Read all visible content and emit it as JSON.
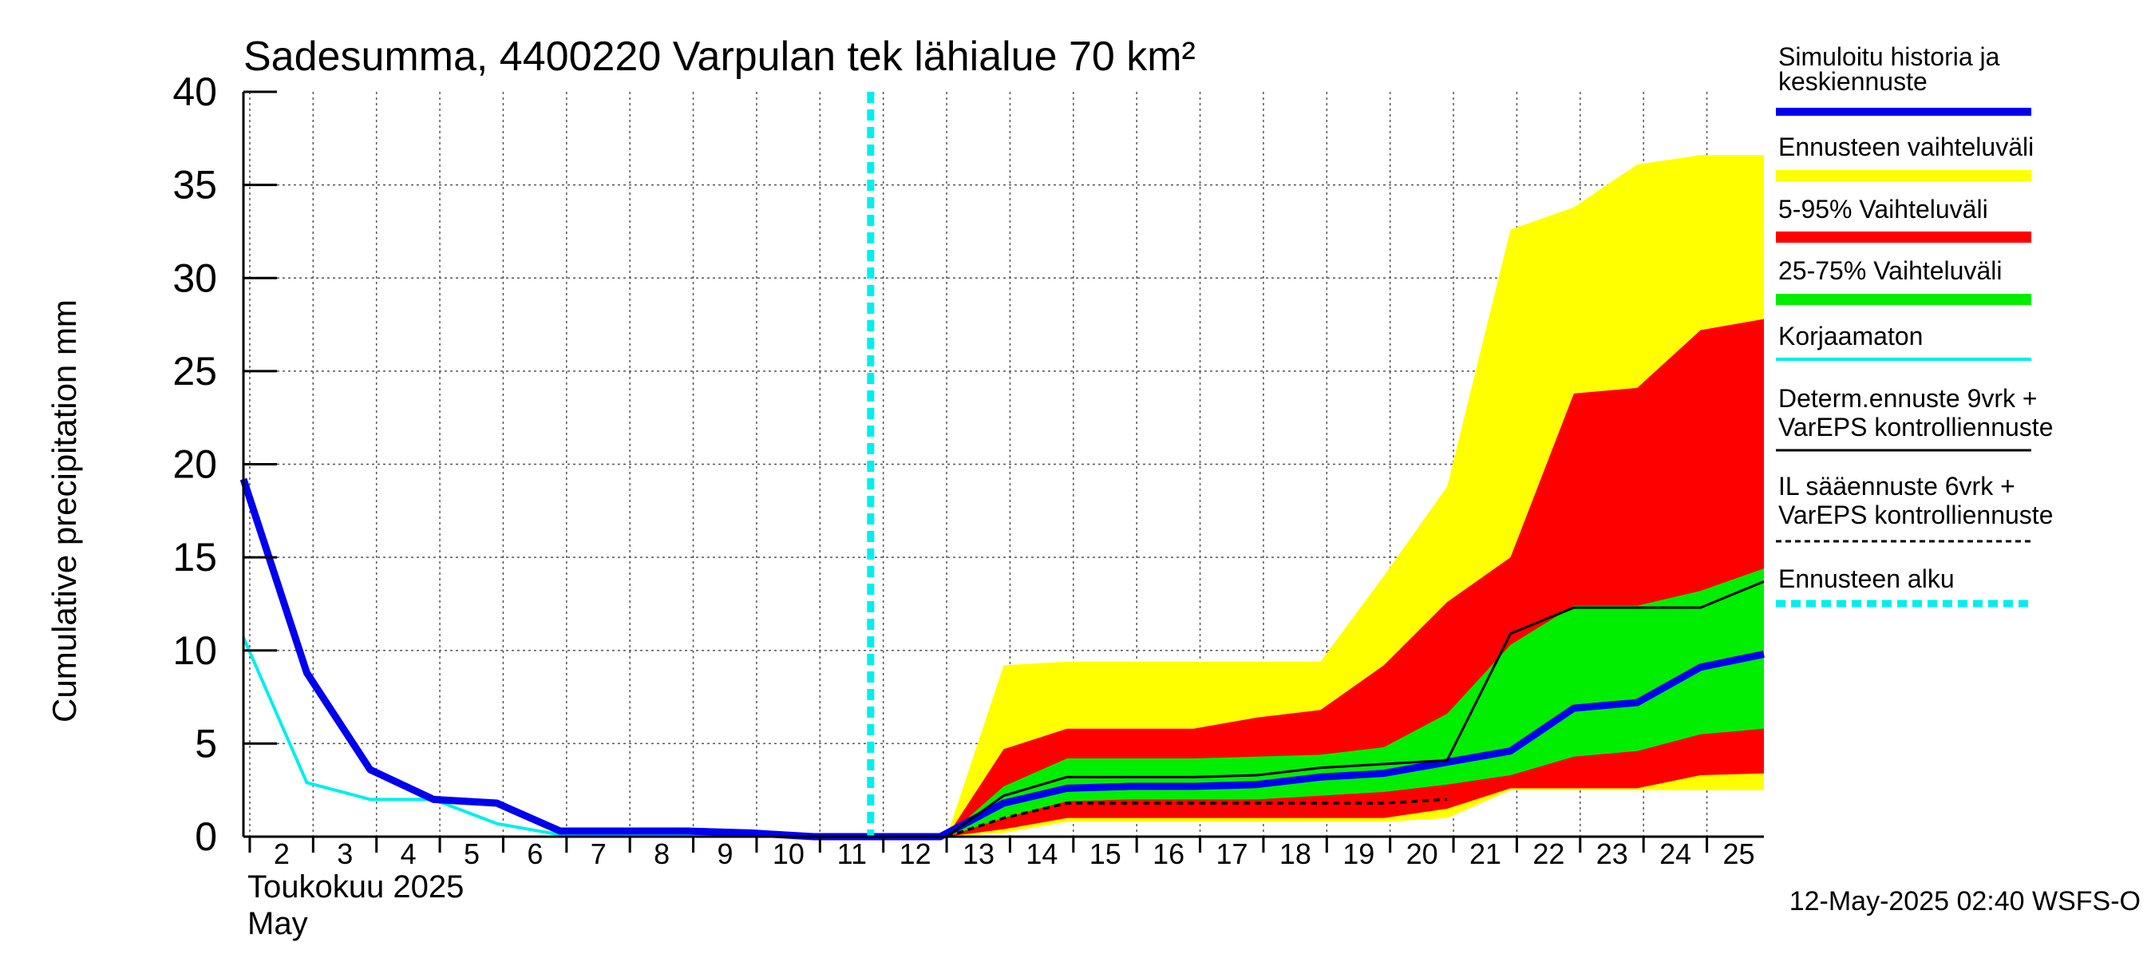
{
  "chart_data": {
    "type": "area",
    "title": "Sadesumma, 4400220 Varpulan tek lähialue 70 km²",
    "ylabel": "Cumulative precipitation   mm",
    "xlabel_month_fi": "Toukokuu  2025",
    "xlabel_month_en": "May",
    "footer": "12-May-2025 02:40 WSFS-O",
    "ylim": [
      0,
      40
    ],
    "y_ticks": [
      "0",
      "5",
      "10",
      "15",
      "20",
      "25",
      "30",
      "35",
      "40"
    ],
    "x_range": [
      1.9,
      25.9
    ],
    "x_ticks": [
      "2",
      "3",
      "4",
      "5",
      "6",
      "7",
      "8",
      "9",
      "10",
      "11",
      "12",
      "13",
      "14",
      "15",
      "16",
      "17",
      "18",
      "19",
      "20",
      "21",
      "22",
      "23",
      "24",
      "25"
    ],
    "grid": true,
    "legend_position": "right",
    "forecast_start": 11.8,
    "colors": {
      "sim": "#0000ee",
      "range_full": "#ffff00",
      "range_5_95": "#ff0000",
      "range_25_75": "#00ee00",
      "uncorrected": "#00eeee",
      "determ": "#000000",
      "il": "#000000",
      "forecast_start": "#00eeee"
    },
    "bands": [
      {
        "key": "range_full",
        "x": [
          13,
          13.9,
          14.9,
          15.9,
          16.9,
          17.9,
          18.9,
          19.9,
          20.9,
          21.9,
          22.9,
          23.9,
          24.9,
          25.9
        ],
        "upper": [
          0,
          9.2,
          9.4,
          9.4,
          9.4,
          9.4,
          9.4,
          14.0,
          18.8,
          32.6,
          33.8,
          36.1,
          36.6,
          36.6
        ],
        "lower": [
          0,
          0.2,
          0.8,
          0.8,
          0.8,
          0.8,
          0.8,
          0.8,
          1.0,
          2.5,
          2.5,
          2.5,
          2.5,
          2.5
        ]
      },
      {
        "key": "range_5_95",
        "x": [
          13,
          13.9,
          14.9,
          15.9,
          16.9,
          17.9,
          18.9,
          19.9,
          20.9,
          21.9,
          22.9,
          23.9,
          24.9,
          25.9
        ],
        "upper": [
          0,
          4.7,
          5.8,
          5.8,
          5.8,
          6.4,
          6.8,
          9.2,
          12.6,
          15.0,
          23.8,
          24.1,
          27.2,
          27.8
        ],
        "lower": [
          0,
          0.4,
          1.0,
          1.0,
          1.0,
          1.0,
          1.0,
          1.0,
          1.5,
          2.6,
          2.6,
          2.6,
          3.3,
          3.4
        ]
      },
      {
        "key": "range_25_75",
        "x": [
          13,
          13.9,
          14.9,
          15.9,
          16.9,
          17.9,
          18.9,
          19.9,
          20.9,
          21.9,
          22.9,
          23.9,
          24.9,
          25.9
        ],
        "upper": [
          0,
          2.7,
          4.2,
          4.2,
          4.2,
          4.3,
          4.4,
          4.8,
          6.6,
          10.3,
          12.4,
          12.4,
          13.2,
          14.4
        ],
        "lower": [
          0,
          1.0,
          1.9,
          2.0,
          2.0,
          2.0,
          2.2,
          2.4,
          2.8,
          3.3,
          4.3,
          4.6,
          5.5,
          5.8
        ]
      }
    ],
    "series": [
      {
        "key": "uncorrected",
        "x": [
          1.9,
          2.9,
          3.9,
          4.9,
          5.9,
          6.9,
          7.9,
          8.9,
          9.9,
          10.9,
          11.9,
          12.9
        ],
        "y": [
          10.7,
          2.9,
          2.0,
          2.0,
          0.7,
          0.1,
          0.1,
          0.1,
          0.1,
          0.0,
          0.0,
          0.0
        ]
      },
      {
        "key": "sim",
        "x": [
          1.9,
          2.9,
          3.9,
          4.9,
          5.9,
          6.9,
          7.9,
          8.9,
          9.9,
          10.9,
          11.9,
          12.9,
          13.9,
          14.9,
          15.9,
          16.9,
          17.9,
          18.9,
          19.9,
          20.9,
          21.9,
          22.9,
          23.9,
          24.9,
          25.9
        ],
        "y": [
          19.2,
          8.8,
          3.6,
          2.0,
          1.8,
          0.3,
          0.3,
          0.3,
          0.2,
          0.0,
          0.0,
          0.0,
          1.8,
          2.6,
          2.7,
          2.7,
          2.8,
          3.2,
          3.4,
          4.0,
          4.6,
          6.9,
          7.2,
          9.1,
          9.8
        ]
      },
      {
        "key": "determ",
        "x": [
          13,
          13.9,
          14.9,
          15.9,
          16.9,
          17.9,
          18.9,
          19.9,
          20.9,
          21.9,
          22.9,
          23.9,
          24.9,
          25.9
        ],
        "y": [
          0,
          2.2,
          3.2,
          3.2,
          3.2,
          3.3,
          3.7,
          3.9,
          4.1,
          10.9,
          12.3,
          12.3,
          12.3,
          13.7
        ]
      },
      {
        "key": "il",
        "x": [
          13,
          13.9,
          14.9,
          15.9,
          16.9,
          17.9,
          18.9,
          19.9,
          20.9
        ],
        "y": [
          0,
          1.0,
          1.8,
          1.8,
          1.8,
          1.8,
          1.8,
          1.8,
          2.0
        ]
      }
    ],
    "legend": [
      {
        "key": "sim",
        "label": "Simuloitu historia ja keskiennuste"
      },
      {
        "key": "range_full",
        "label": "Ennusteen vaihteluväli"
      },
      {
        "key": "range_5_95",
        "label": "5-95% Vaihteluväli"
      },
      {
        "key": "range_25_75",
        "label": "25-75% Vaihteluväli"
      },
      {
        "key": "uncorrected",
        "label": "Korjaamaton"
      },
      {
        "key": "determ",
        "label": "Determ.ennuste 9vrk + VarEPS kontrolliennuste"
      },
      {
        "key": "il",
        "label": "IL sääennuste 6vrk  + VarEPS kontrolliennuste"
      },
      {
        "key": "forecast_start",
        "label": "Ennusteen alku"
      }
    ]
  }
}
